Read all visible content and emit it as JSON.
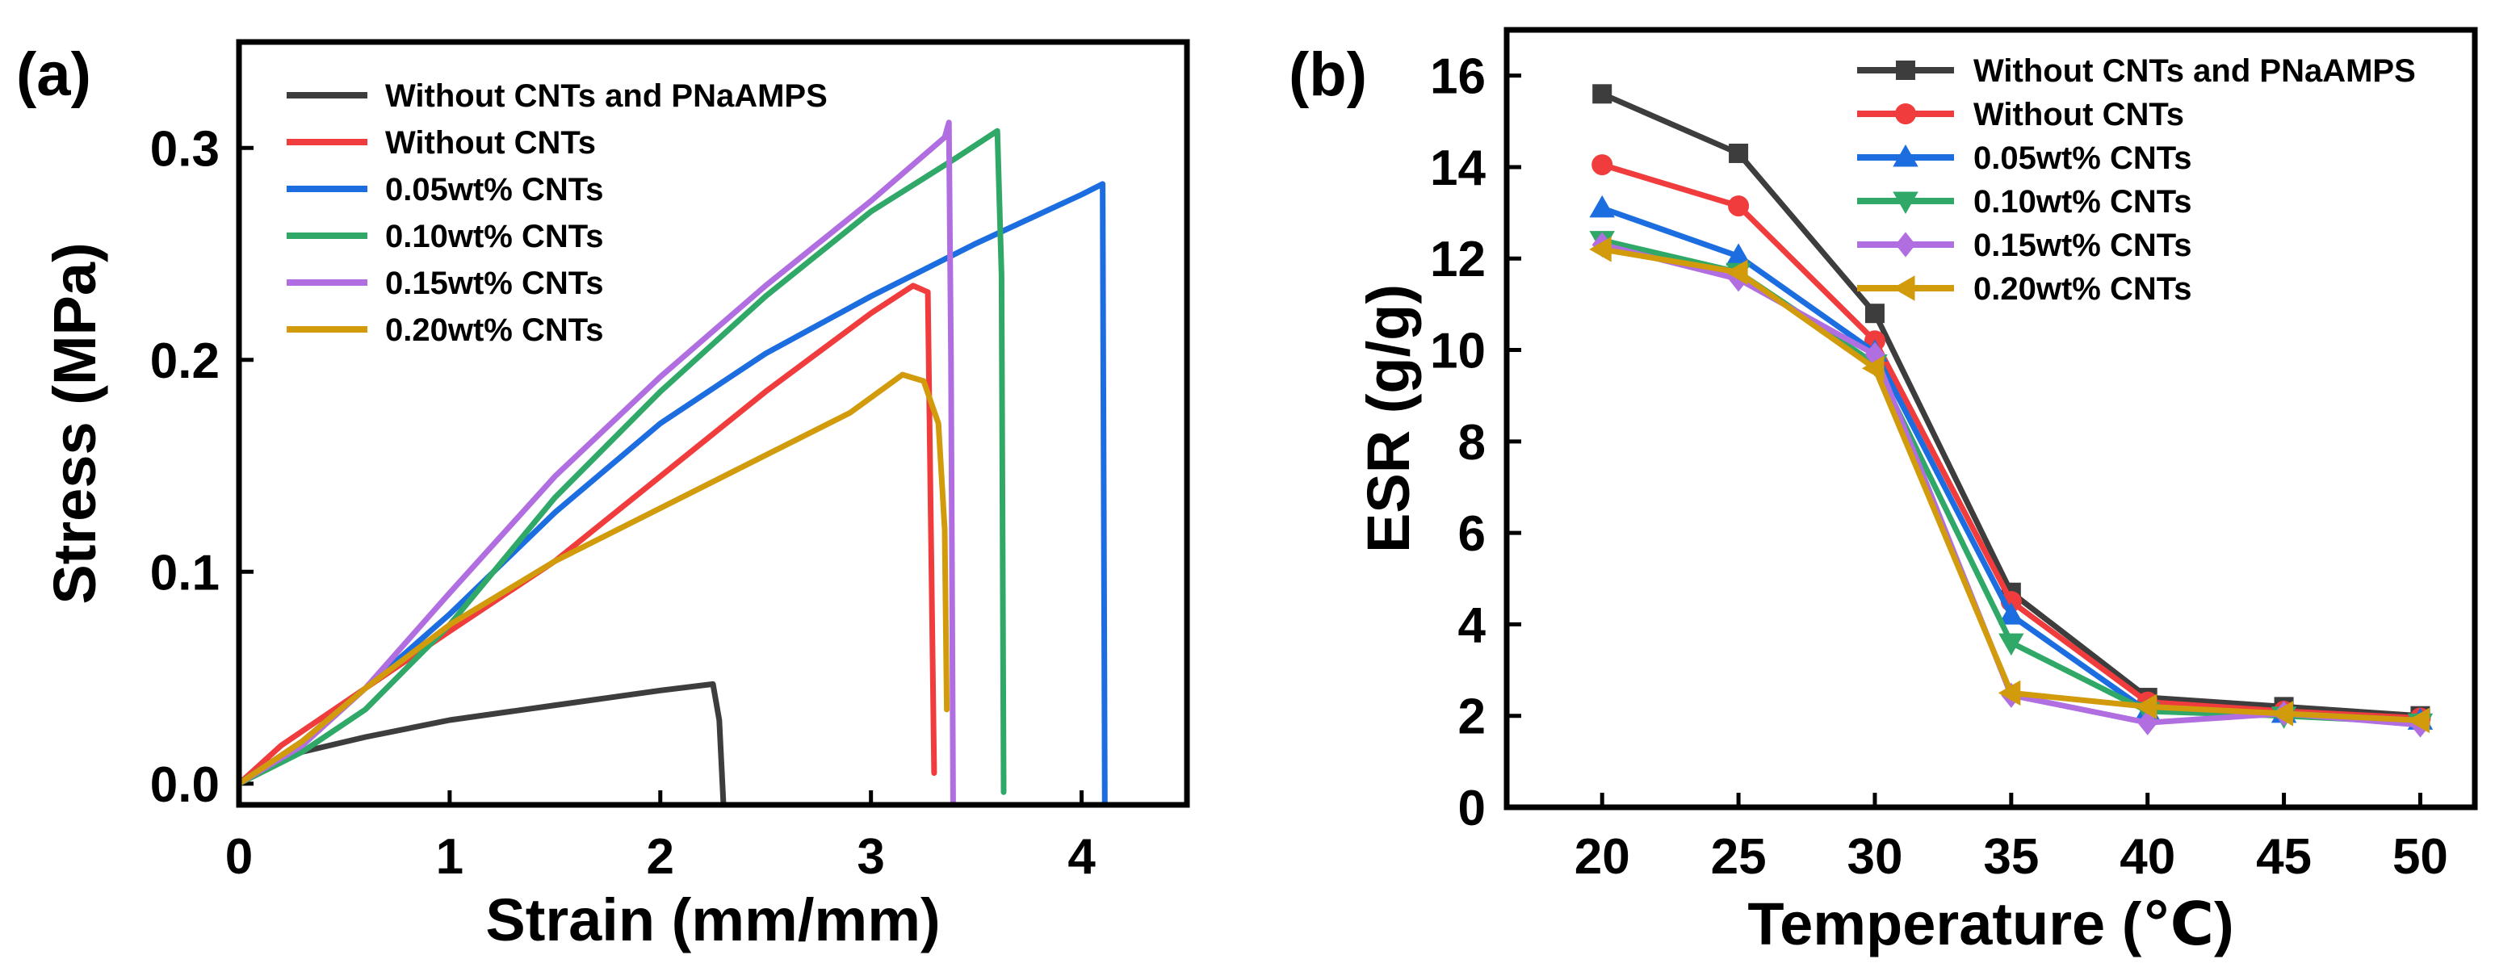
{
  "chart_data": [
    {
      "panel_label": "(a)",
      "type": "line",
      "xlabel": "Strain (mm/mm)",
      "ylabel": "Stress (MPa)",
      "xlim": [
        0,
        4.5
      ],
      "ylim": [
        -0.01,
        0.35
      ],
      "xticks": [
        0,
        1,
        2,
        3,
        4
      ],
      "xtick_labels": [
        "0",
        "1",
        "2",
        "3",
        "4"
      ],
      "yticks": [
        0.0,
        0.1,
        0.2,
        0.3
      ],
      "ytick_labels": [
        "0.0",
        "0.1",
        "0.2",
        "0.3"
      ],
      "legend_position": "top-left",
      "series": [
        {
          "name": "Without CNTs and PNaAMPS",
          "color": "#3d3d3d",
          "x": [
            0,
            0.1,
            0.3,
            0.6,
            1.0,
            1.5,
            2.0,
            2.25,
            2.28,
            2.3
          ],
          "y": [
            0,
            0.008,
            0.015,
            0.022,
            0.03,
            0.037,
            0.044,
            0.047,
            0.03,
            -0.01
          ]
        },
        {
          "name": "Without CNTs",
          "color": "#f03c3c",
          "x": [
            0,
            0.2,
            0.6,
            1.0,
            1.5,
            2.0,
            2.5,
            3.0,
            3.2,
            3.27,
            3.3
          ],
          "y": [
            0,
            0.018,
            0.045,
            0.072,
            0.105,
            0.145,
            0.185,
            0.222,
            0.235,
            0.232,
            0.005
          ]
        },
        {
          "name": "0.05wt% CNTs",
          "color": "#1c6ee0",
          "x": [
            0,
            0.3,
            0.6,
            1.0,
            1.5,
            2.0,
            2.5,
            3.0,
            3.5,
            4.0,
            4.1,
            4.11
          ],
          "y": [
            0,
            0.02,
            0.045,
            0.08,
            0.128,
            0.17,
            0.203,
            0.23,
            0.255,
            0.278,
            0.283,
            -0.01
          ]
        },
        {
          "name": "0.10wt% CNTs",
          "color": "#2fa868",
          "x": [
            0,
            0.3,
            0.6,
            1.0,
            1.5,
            2.0,
            2.5,
            3.0,
            3.4,
            3.6,
            3.62,
            3.63
          ],
          "y": [
            0,
            0.015,
            0.035,
            0.075,
            0.135,
            0.185,
            0.23,
            0.27,
            0.295,
            0.308,
            0.24,
            -0.004
          ]
        },
        {
          "name": "0.15wt% CNTs",
          "color": "#b06ee0",
          "x": [
            0,
            0.3,
            0.6,
            1.0,
            1.5,
            2.0,
            2.5,
            3.0,
            3.35,
            3.37,
            3.38,
            3.39
          ],
          "y": [
            0,
            0.018,
            0.045,
            0.09,
            0.145,
            0.192,
            0.235,
            0.275,
            0.305,
            0.312,
            0.2,
            -0.01
          ]
        },
        {
          "name": "0.20wt% CNTs",
          "color": "#d19b0c",
          "x": [
            0,
            0.3,
            0.6,
            1.0,
            1.5,
            2.0,
            2.5,
            2.9,
            3.15,
            3.25,
            3.32,
            3.35,
            3.36
          ],
          "y": [
            0,
            0.02,
            0.045,
            0.075,
            0.105,
            0.13,
            0.155,
            0.175,
            0.193,
            0.19,
            0.17,
            0.12,
            0.035
          ]
        }
      ]
    },
    {
      "panel_label": "(b)",
      "type": "line",
      "xlabel": "Temperature (℃)",
      "ylabel": "ESR (g/g)",
      "xlim": [
        16.5,
        52
      ],
      "ylim": [
        0,
        17
      ],
      "xticks": [
        20,
        25,
        30,
        35,
        40,
        45,
        50
      ],
      "xtick_labels": [
        "20",
        "25",
        "30",
        "35",
        "40",
        "45",
        "50"
      ],
      "yticks": [
        0,
        2,
        4,
        6,
        8,
        10,
        12,
        14,
        16
      ],
      "ytick_labels": [
        "0",
        "2",
        "4",
        "6",
        "8",
        "10",
        "12",
        "14",
        "16"
      ],
      "legend_position": "top-right",
      "x": [
        20,
        25,
        30,
        35,
        40,
        45,
        50
      ],
      "series": [
        {
          "name": "Without CNTs and PNaAMPS",
          "color": "#3d3d3d",
          "marker": "square",
          "values": [
            15.6,
            14.3,
            10.8,
            4.7,
            2.4,
            2.2,
            2.0
          ]
        },
        {
          "name": "Without CNTs",
          "color": "#f03c3c",
          "marker": "circle",
          "values": [
            14.05,
            13.15,
            10.2,
            4.5,
            2.3,
            2.1,
            1.95
          ]
        },
        {
          "name": "0.05wt% CNTs",
          "color": "#1c6ee0",
          "marker": "triangle-up",
          "values": [
            13.1,
            12.05,
            9.95,
            4.2,
            2.1,
            2.05,
            1.9
          ]
        },
        {
          "name": "0.10wt% CNTs",
          "color": "#2fa868",
          "marker": "triangle-down",
          "values": [
            12.4,
            11.7,
            9.7,
            3.6,
            2.1,
            2.0,
            1.85
          ]
        },
        {
          "name": "0.15wt% CNTs",
          "color": "#b06ee0",
          "marker": "diamond",
          "values": [
            12.3,
            11.55,
            9.9,
            2.45,
            1.85,
            2.05,
            1.8
          ]
        },
        {
          "name": "0.20wt% CNTs",
          "color": "#d19b0c",
          "marker": "triangle-left",
          "values": [
            12.2,
            11.7,
            9.6,
            2.5,
            2.2,
            2.05,
            1.9
          ]
        }
      ]
    }
  ]
}
